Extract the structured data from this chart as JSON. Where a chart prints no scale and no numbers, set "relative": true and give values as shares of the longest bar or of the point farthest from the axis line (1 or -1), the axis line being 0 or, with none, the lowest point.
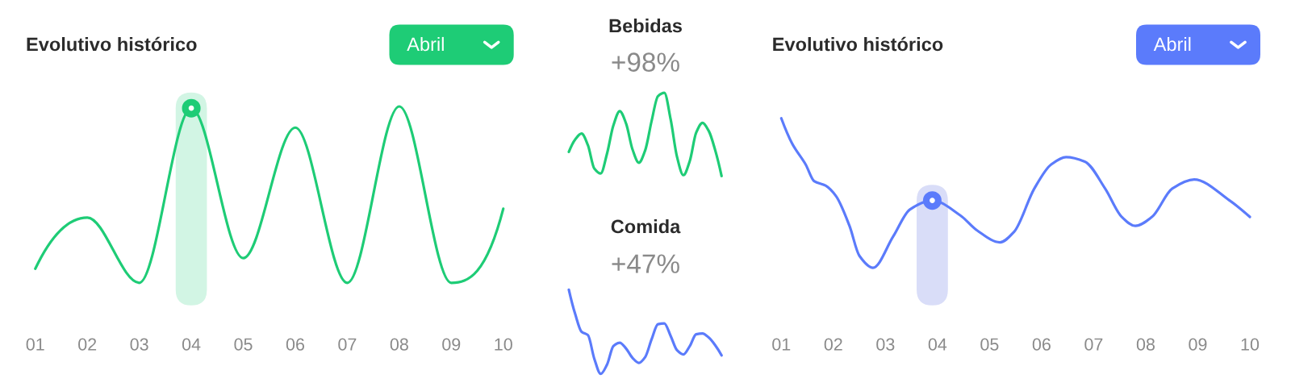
{
  "chart_data": [
    {
      "type": "line",
      "title": "Evolutivo histórico",
      "annotations": [
        "Abril"
      ],
      "relative": true,
      "tick_labels": "x",
      "xlim": [
        1,
        10
      ],
      "xticks": [
        {
          "value": 1,
          "label": "01"
        },
        {
          "value": 2,
          "label": "02"
        },
        {
          "value": 3,
          "label": "03"
        },
        {
          "value": 4,
          "label": "04"
        },
        {
          "value": 5,
          "label": "05"
        },
        {
          "value": 6,
          "label": "06"
        },
        {
          "value": 7,
          "label": "07"
        },
        {
          "value": 8,
          "label": "08"
        },
        {
          "value": 9,
          "label": "09"
        },
        {
          "value": 10,
          "label": "10"
        }
      ],
      "bands": [
        {
          "axis": "x",
          "from": 3.7,
          "to": 4.3,
          "color": "#d2f5e4"
        }
      ],
      "series": [
        {
          "type": "line",
          "color": "#1ecc76",
          "x": [
            1,
            2,
            3,
            4,
            5,
            6,
            7,
            8,
            9,
            10
          ],
          "values": [
            0.08,
            0.37,
            0,
            0.99,
            0.14,
            0.88,
            0,
            1,
            0,
            0.42
          ]
        },
        {
          "type": "scatter",
          "marker": "circle",
          "color": "#1ecc76",
          "x": [
            4
          ],
          "values": [
            0.99
          ]
        }
      ]
    },
    {
      "type": "line",
      "title": "Bebidas",
      "subtitle": "+98%",
      "relative": true,
      "tick_labels": false,
      "categories": [
        null,
        null,
        null,
        null,
        null,
        null,
        null,
        null,
        null,
        null,
        null,
        null,
        null,
        null,
        null,
        null,
        null,
        null,
        null,
        null,
        null,
        null,
        null,
        null,
        null
      ],
      "series": [
        {
          "color": "#1ecc76",
          "values": [
            0.29,
            0.44,
            0.51,
            0.37,
            0.09,
            0.03,
            0.27,
            0.61,
            0.78,
            0.63,
            0.32,
            0.16,
            0.31,
            0.66,
            0.96,
            1,
            0.68,
            0.23,
            0.01,
            0.18,
            0.52,
            0.64,
            0.54,
            0.31,
            0
          ]
        }
      ]
    },
    {
      "type": "line",
      "title": "Comida",
      "subtitle": "+47%",
      "relative": true,
      "tick_labels": false,
      "categories": [
        null,
        null,
        null,
        null,
        null,
        null,
        null,
        null,
        null,
        null,
        null,
        null,
        null,
        null,
        null,
        null,
        null,
        null,
        null,
        null,
        null,
        null,
        null,
        null,
        null
      ],
      "series": [
        {
          "color": "#5b7bfb",
          "values": [
            1,
            0.71,
            0.5,
            0.46,
            0.18,
            0,
            0.11,
            0.33,
            0.37,
            0.3,
            0.19,
            0.13,
            0.2,
            0.41,
            0.59,
            0.6,
            0.45,
            0.28,
            0.23,
            0.33,
            0.47,
            0.48,
            0.43,
            0.34,
            0.22
          ]
        }
      ]
    },
    {
      "type": "line",
      "title": "Evolutivo histórico",
      "annotations": [
        "Abril"
      ],
      "relative": true,
      "tick_labels": "x",
      "xlim": [
        1,
        10
      ],
      "xticks": [
        {
          "value": 1,
          "label": "01"
        },
        {
          "value": 2,
          "label": "02"
        },
        {
          "value": 3,
          "label": "03"
        },
        {
          "value": 4,
          "label": "04"
        },
        {
          "value": 5,
          "label": "05"
        },
        {
          "value": 6,
          "label": "06"
        },
        {
          "value": 7,
          "label": "07"
        },
        {
          "value": 8,
          "label": "08"
        },
        {
          "value": 9,
          "label": "09"
        },
        {
          "value": 10,
          "label": "10"
        }
      ],
      "bands": [
        {
          "axis": "x",
          "from": 3.6,
          "to": 4.2,
          "color": "#d9ddf8"
        }
      ],
      "series": [
        {
          "type": "line",
          "color": "#5b7bfb",
          "x": [
            1,
            1.21,
            1.47,
            1.63,
            1.85,
            2.05,
            2.31,
            2.5,
            2.76,
            3.15,
            3.47,
            3.9,
            4.44,
            4.76,
            5.2,
            5.47,
            5.86,
            6.18,
            6.47,
            6.83,
            7.22,
            7.54,
            7.8,
            8.12,
            8.51,
            8.93,
            9.61,
            10
          ],
          "values": [
            1,
            0.83,
            0.69,
            0.58,
            0.55,
            0.48,
            0.28,
            0.08,
            0,
            0.21,
            0.39,
            0.45,
            0.35,
            0.25,
            0.17,
            0.24,
            0.53,
            0.69,
            0.74,
            0.71,
            0.53,
            0.34,
            0.28,
            0.34,
            0.53,
            0.59,
            0.45,
            0.34
          ]
        },
        {
          "type": "scatter",
          "marker": "circle",
          "color": "#5b7bfb",
          "x": [
            3.9
          ],
          "values": [
            0.45
          ]
        }
      ]
    }
  ]
}
